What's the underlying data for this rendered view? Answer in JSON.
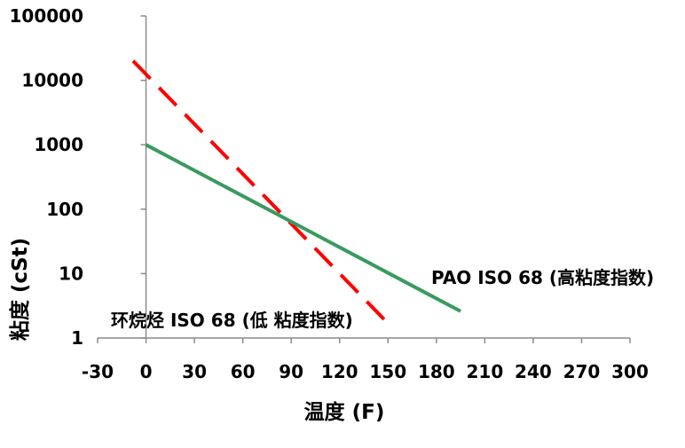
{
  "chart_data": {
    "type": "line",
    "title": "",
    "xlabel": "温度 (F)",
    "ylabel": "粘度 (cSt)",
    "y_scale": "log",
    "xlim": [
      -30,
      300
    ],
    "ylim": [
      1,
      100000
    ],
    "x_ticks": [
      -30,
      0,
      30,
      60,
      90,
      120,
      150,
      180,
      210,
      240,
      270,
      300
    ],
    "y_ticks": [
      1,
      10,
      100,
      1000,
      10000,
      100000
    ],
    "x_tick_labels": [
      "-30",
      "0",
      "30",
      "60",
      "90",
      "120",
      "150",
      "180",
      "210",
      "240",
      "270",
      "300"
    ],
    "y_tick_labels": [
      "1",
      "10",
      "100",
      "1000",
      "10000",
      "100000"
    ],
    "grid": false,
    "series": [
      {
        "name": "环烷烃 ISO 68 (低 粘度指数)",
        "color": "#ff0000",
        "style": "dashed",
        "x": [
          -8,
          152
        ],
        "y": [
          20000,
          1.5
        ]
      },
      {
        "name": "PAO ISO 68 (高粘度指数)",
        "color": "#3a9a5f",
        "style": "solid",
        "x": [
          0,
          195
        ],
        "y": [
          1000,
          2.6
        ]
      }
    ],
    "annotations": [
      {
        "text": "环烷烃 ISO 68 (低 粘度指数)",
        "series": 0
      },
      {
        "text": "PAO ISO 68 (高粘度指数)",
        "series": 1
      }
    ]
  }
}
